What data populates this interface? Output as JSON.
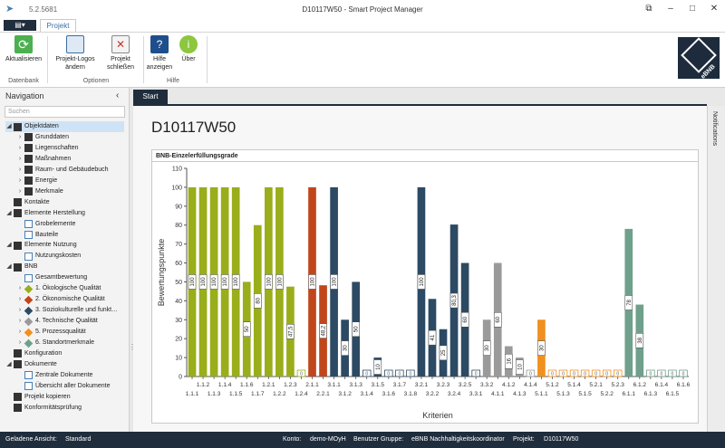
{
  "app": {
    "version": "5.2.5681",
    "window_title": "D10117W50 - Smart Project Manager",
    "menu_glyph": "▤▾"
  },
  "ribbon": {
    "tab": "Projekt",
    "buttons": [
      {
        "label": "Aktualisieren",
        "icon": "refresh-icon",
        "color": "#4caf50"
      },
      {
        "label": "Projekt-Logos ändern",
        "icon": "logos-icon",
        "color": "#3a6ea5"
      },
      {
        "label": "Projekt schließen",
        "icon": "close-project-icon",
        "color": "#c0392b"
      },
      {
        "label": "Hilfe anzeigen",
        "icon": "help-book-icon",
        "color": "#1f4e8c"
      },
      {
        "label": "Über",
        "icon": "info-icon",
        "color": "#8dc63f"
      }
    ],
    "groups": [
      "Datenbank",
      "Optionen",
      "Hilfe"
    ],
    "logo_text": "eBNB"
  },
  "navigation": {
    "header": "Navigation",
    "collapse_glyph": "‹",
    "search_placeholder": "Suchen",
    "items": [
      {
        "label": "Objektdaten",
        "level": 0,
        "arrow": "◢",
        "icon": "folder-icon",
        "color": "#333333",
        "selected": true
      },
      {
        "label": "Grunddaten",
        "level": 1,
        "arrow": "›",
        "icon": "document-icon",
        "color": "#333333"
      },
      {
        "label": "Liegenschaften",
        "level": 1,
        "arrow": "›",
        "icon": "pin-icon",
        "color": "#333333"
      },
      {
        "label": "Maßnahmen",
        "level": 1,
        "arrow": "›",
        "icon": "tools-icon",
        "color": "#333333"
      },
      {
        "label": "Raum- und Gebäudebuch",
        "level": 1,
        "arrow": "›",
        "icon": "truck-icon",
        "color": "#333333"
      },
      {
        "label": "Energie",
        "level": 1,
        "arrow": "›",
        "icon": "energy-icon",
        "color": "#333333"
      },
      {
        "label": "Merkmale",
        "level": 1,
        "arrow": "›",
        "icon": "wrench-icon",
        "color": "#333333"
      },
      {
        "label": "Kontakte",
        "level": 0,
        "arrow": "",
        "icon": "contacts-icon",
        "color": "#333333"
      },
      {
        "label": "Elemente Herstellung",
        "level": 0,
        "arrow": "◢",
        "icon": "house-icon",
        "color": "#333333"
      },
      {
        "label": "Grobelemente",
        "level": 1,
        "arrow": "",
        "icon": "grid-icon",
        "color": "#4a7fb5"
      },
      {
        "label": "Bauteile",
        "level": 1,
        "arrow": "",
        "icon": "grid-icon",
        "color": "#4a7fb5"
      },
      {
        "label": "Elemente Nutzung",
        "level": 0,
        "arrow": "◢",
        "icon": "house-icon",
        "color": "#333333"
      },
      {
        "label": "Nutzungskosten",
        "level": 1,
        "arrow": "",
        "icon": "grid-icon",
        "color": "#4a7fb5"
      },
      {
        "label": "BNB",
        "level": 0,
        "arrow": "◢",
        "icon": "bnb-icon",
        "color": "#333333"
      },
      {
        "label": "Gesamtbewertung",
        "level": 1,
        "arrow": "",
        "icon": "grid-icon",
        "color": "#4a7fb5"
      },
      {
        "label": "1. Ökologische Qualität",
        "level": 1,
        "arrow": "›",
        "icon": "diamond-icon",
        "color": "#9aad1a"
      },
      {
        "label": "2. Ökonomische Qualität",
        "level": 1,
        "arrow": "›",
        "icon": "diamond-icon",
        "color": "#c0461b"
      },
      {
        "label": "3. Soziokulturelle und funkt…",
        "level": 1,
        "arrow": "›",
        "icon": "diamond-icon",
        "color": "#2d4a64"
      },
      {
        "label": "4. Technische Qualität",
        "level": 1,
        "arrow": "›",
        "icon": "diamond-icon",
        "color": "#9a9a9a"
      },
      {
        "label": "5. Prozessqualität",
        "level": 1,
        "arrow": "›",
        "icon": "diamond-icon",
        "color": "#f0901e"
      },
      {
        "label": "6. Standortmerkmale",
        "level": 1,
        "arrow": "›",
        "icon": "diamond-icon",
        "color": "#6fa08c"
      },
      {
        "label": "Konfiguration",
        "level": 0,
        "arrow": "",
        "icon": "gear-icon",
        "color": "#333333"
      },
      {
        "label": "Dokumente",
        "level": 0,
        "arrow": "◢",
        "icon": "documents-icon",
        "color": "#333333"
      },
      {
        "label": "Zentrale Dokumente",
        "level": 1,
        "arrow": "",
        "icon": "grid-icon",
        "color": "#4a7fb5"
      },
      {
        "label": "Übersicht aller Dokumente",
        "level": 1,
        "arrow": "",
        "icon": "grid-icon",
        "color": "#4a7fb5"
      },
      {
        "label": "Projekt kopieren",
        "level": 0,
        "arrow": "",
        "icon": "copy-icon",
        "color": "#333333"
      },
      {
        "label": "Konformitätsprüfung",
        "level": 0,
        "arrow": "",
        "icon": "check-icon",
        "color": "#333333"
      }
    ]
  },
  "doc_tab": "Start",
  "page_title": "D10117W50",
  "notifications_label": "Notifications",
  "chart_panel_title": "BNB-Einzelerfüllungsgrade",
  "chart_data": {
    "type": "bar",
    "title": "",
    "xlabel": "Kriterien",
    "ylabel": "Bewertungspunkte",
    "ylim": [
      0,
      110
    ],
    "yticks": [
      0,
      10,
      20,
      30,
      40,
      50,
      60,
      70,
      80,
      90,
      100,
      110
    ],
    "grid": false,
    "categories": [
      "1.1.1",
      "1.1.2",
      "1.1.3",
      "1.1.4",
      "1.1.5",
      "1.1.6",
      "1.1.7",
      "1.2.1",
      "1.2.2",
      "1.2.3",
      "1.2.4",
      "2.1.1",
      "2.2.1",
      "3.1.1",
      "3.1.2",
      "3.1.3",
      "3.1.4",
      "3.1.5",
      "3.1.6",
      "3.1.7",
      "3.1.8",
      "3.2.1",
      "3.2.2",
      "3.2.3",
      "3.2.4",
      "3.2.5",
      "3.3.1",
      "3.3.2",
      "4.1.1",
      "4.1.2",
      "4.1.3",
      "4.1.4",
      "5.1.1",
      "5.1.2",
      "5.1.3",
      "5.1.4",
      "5.1.5",
      "5.2.1",
      "5.2.2",
      "5.2.3",
      "6.1.1",
      "6.1.2",
      "6.1.3",
      "6.1.4",
      "6.1.5",
      "6.1.6"
    ],
    "values": [
      100,
      100,
      100,
      100,
      100,
      50,
      80,
      100,
      100,
      47.5,
      0,
      100,
      48.2,
      100,
      30,
      50,
      0,
      10,
      0,
      0,
      0,
      100,
      41,
      25,
      80.3,
      60,
      0,
      30,
      60,
      16,
      10,
      0,
      30,
      0,
      0,
      0,
      0,
      0,
      0,
      0,
      78,
      38,
      0,
      0,
      0,
      0
    ],
    "labels": [
      "100",
      "100",
      "100",
      "100",
      "100",
      "50",
      "80",
      "100",
      "100",
      "47,5",
      "0",
      "100",
      "48,2",
      "100",
      "30",
      "50",
      "0",
      "10",
      "0",
      "0",
      "0",
      "100",
      "41",
      "25",
      "80,3",
      "60",
      "0",
      "30",
      "60",
      "16",
      "10",
      "0",
      "30",
      "0",
      "0",
      "0",
      "0",
      "0",
      "0",
      "0",
      "78",
      "38",
      "0",
      "0",
      "0",
      "0"
    ],
    "colors": [
      "#9aad1a",
      "#9aad1a",
      "#9aad1a",
      "#9aad1a",
      "#9aad1a",
      "#9aad1a",
      "#9aad1a",
      "#9aad1a",
      "#9aad1a",
      "#9aad1a",
      "#9aad1a",
      "#c0461b",
      "#c0461b",
      "#2d4a64",
      "#2d4a64",
      "#2d4a64",
      "#2d4a64",
      "#2d4a64",
      "#2d4a64",
      "#2d4a64",
      "#2d4a64",
      "#2d4a64",
      "#2d4a64",
      "#2d4a64",
      "#2d4a64",
      "#2d4a64",
      "#2d4a64",
      "#9a9a9a",
      "#9a9a9a",
      "#9a9a9a",
      "#9a9a9a",
      "#9a9a9a",
      "#f0901e",
      "#f0901e",
      "#f0901e",
      "#f0901e",
      "#f0901e",
      "#f0901e",
      "#f0901e",
      "#f0901e",
      "#6fa08c",
      "#6fa08c",
      "#6fa08c",
      "#6fa08c",
      "#6fa08c",
      "#6fa08c"
    ]
  },
  "status": {
    "loaded_view_label": "Geladene Ansicht:",
    "loaded_view": "Standard",
    "account_label": "Konto:",
    "account": "demo-MOyH",
    "group_label": "Benutzer Gruppe:",
    "group": "eBNB Nachhaltigkeitskoordinator",
    "project_label": "Projekt:",
    "project": "D10117W50"
  }
}
